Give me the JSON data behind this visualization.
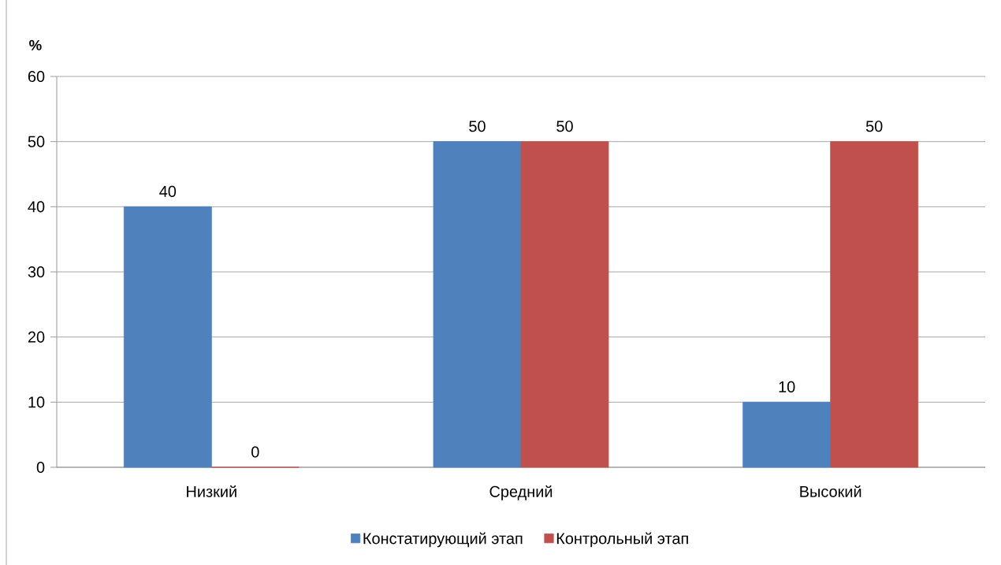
{
  "chart_data": {
    "type": "bar",
    "ylabel": "%",
    "categories": [
      "Низкий",
      "Средний",
      "Высокий"
    ],
    "series": [
      {
        "name": "Констатирующий этап",
        "color": "#4f81bd",
        "values": [
          40,
          50,
          10
        ]
      },
      {
        "name": "Контрольный этап",
        "color": "#c0504d",
        "values": [
          0,
          50,
          50
        ]
      }
    ],
    "ylim": [
      0,
      60
    ],
    "yticks": [
      0,
      10,
      20,
      30,
      40,
      50,
      60
    ],
    "grid": "y",
    "legend": "bottom",
    "data_labels": true
  }
}
